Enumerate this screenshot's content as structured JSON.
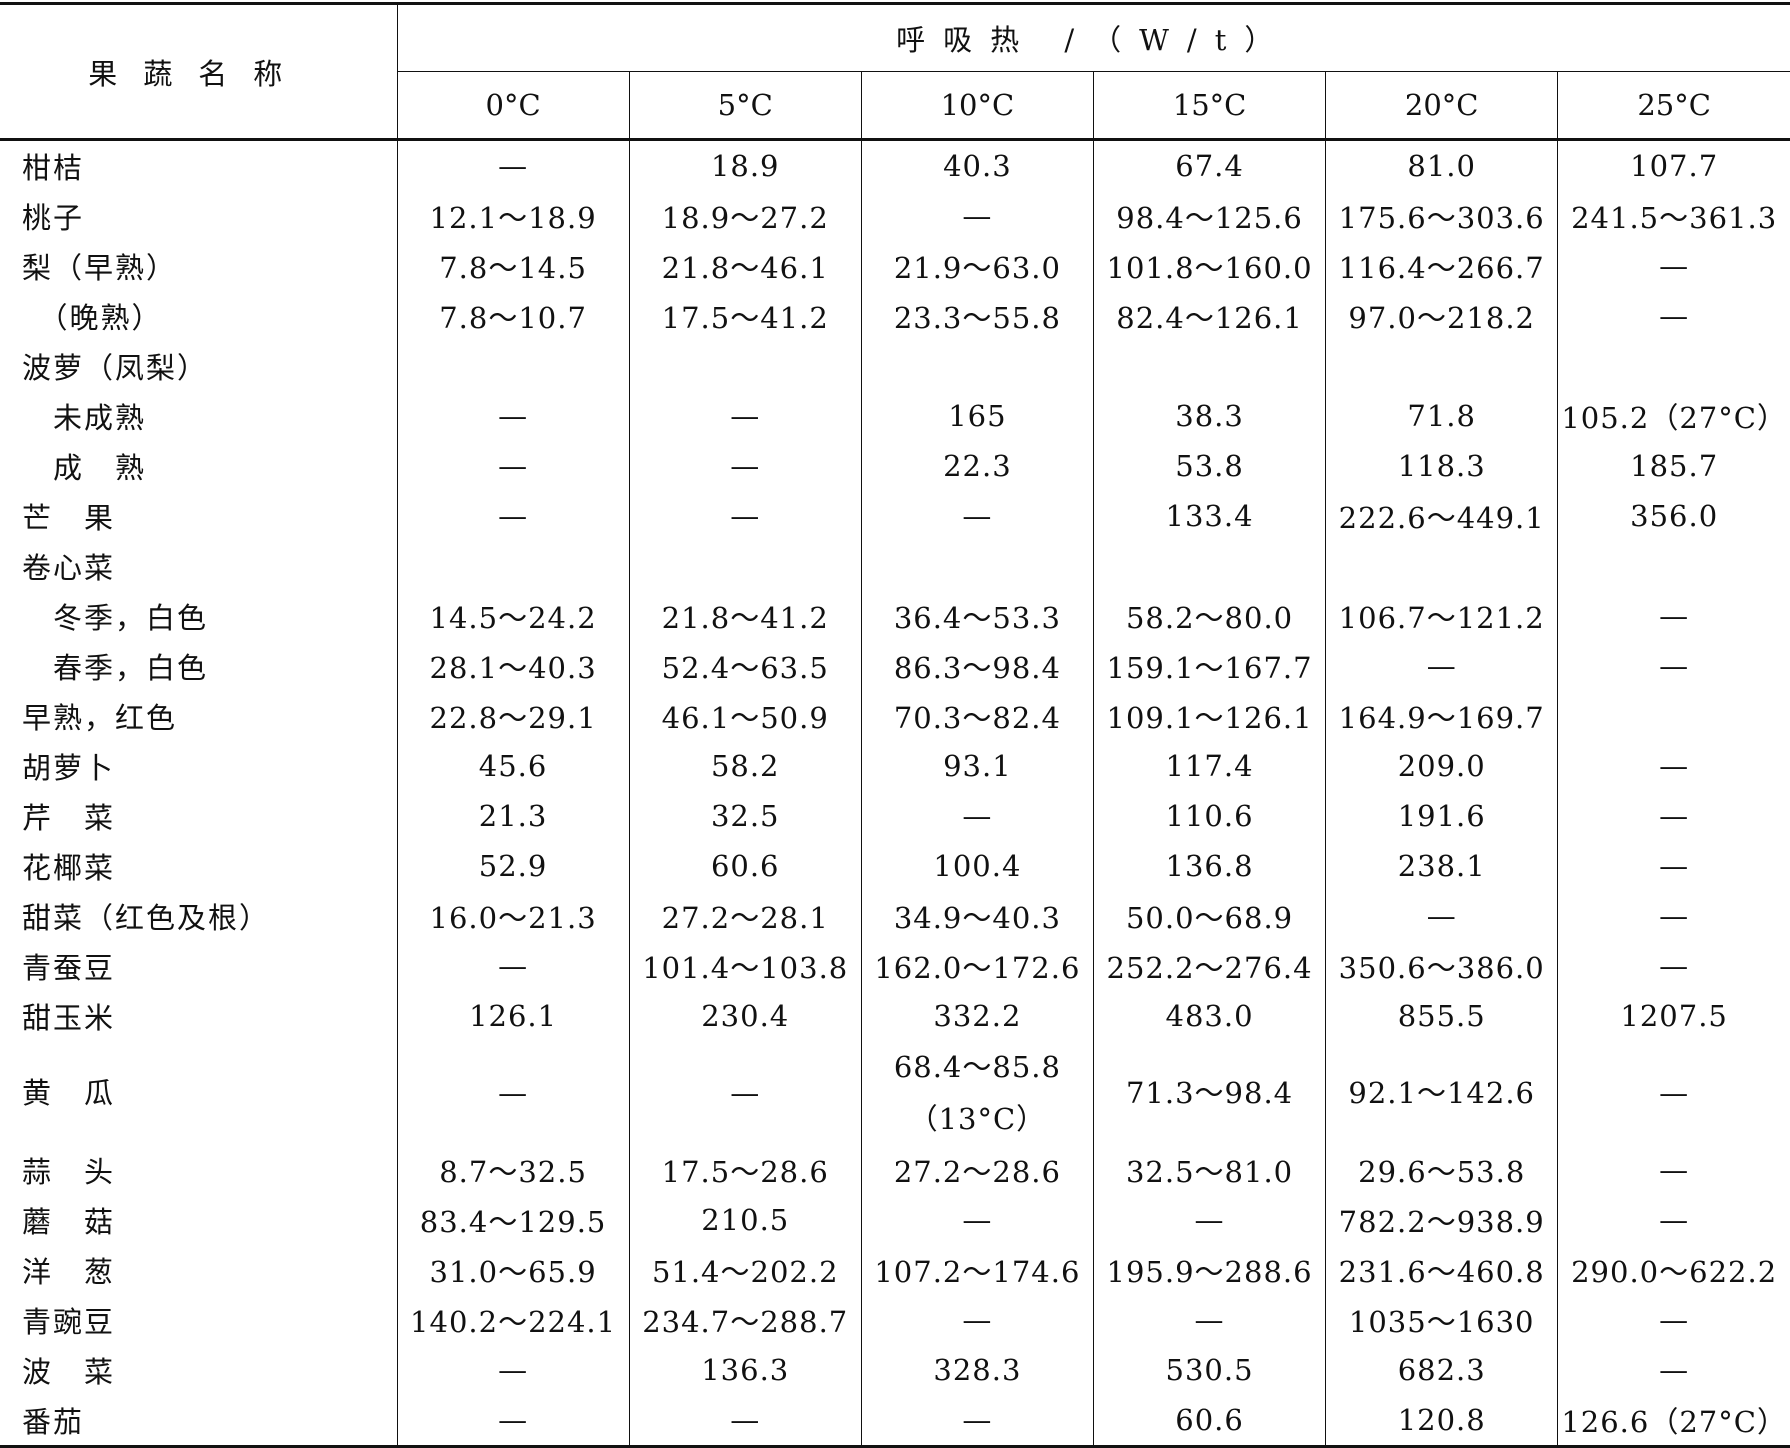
{
  "header": {
    "name_col": "果蔬名称",
    "group_title": "呼吸热 /（W/t）",
    "temperatures": [
      "0°C",
      "5°C",
      "10°C",
      "15°C",
      "20°C",
      "25°C"
    ]
  },
  "rows": [
    {
      "name": "柑桔",
      "values": [
        "—",
        "18.9",
        "40.3",
        "67.4",
        "81.0",
        "107.7"
      ]
    },
    {
      "name": "桃子",
      "values": [
        "12.1～18.9",
        "18.9～27.2",
        "—",
        "98.4～125.6",
        "175.6～303.6",
        "241.5～361.3"
      ]
    },
    {
      "name": "梨（早熟）",
      "values": [
        "7.8～14.5",
        "21.8～46.1",
        "21.9～63.0",
        "101.8～160.0",
        "116.4～266.7",
        "—"
      ]
    },
    {
      "name": "　（晚熟）",
      "values": [
        "7.8～10.7",
        "17.5～41.2",
        "23.3～55.8",
        "82.4～126.1",
        "97.0～218.2",
        "—"
      ]
    },
    {
      "name": "波萝（凤梨）",
      "values": [
        "",
        "",
        "",
        "",
        "",
        ""
      ]
    },
    {
      "name": "　未成熟",
      "values": [
        "—",
        "—",
        "165",
        "38.3",
        "71.8",
        "105.2（27°C）"
      ]
    },
    {
      "name": "　成　熟",
      "values": [
        "—",
        "—",
        "22.3",
        "53.8",
        "118.3",
        "185.7"
      ]
    },
    {
      "name": "芒　果",
      "values": [
        "—",
        "—",
        "—",
        "133.4",
        "222.6～449.1",
        "356.0"
      ]
    },
    {
      "name": "卷心菜",
      "values": [
        "",
        "",
        "",
        "",
        "",
        ""
      ]
    },
    {
      "name": "　冬季，白色",
      "values": [
        "14.5～24.2",
        "21.8～41.2",
        "36.4～53.3",
        "58.2～80.0",
        "106.7～121.2",
        "—"
      ]
    },
    {
      "name": "　春季，白色",
      "values": [
        "28.1～40.3",
        "52.4～63.5",
        "86.3～98.4",
        "159.1～167.7",
        "—",
        "—"
      ]
    },
    {
      "name": "早熟，红色",
      "values": [
        "22.8～29.1",
        "46.1～50.9",
        "70.3～82.4",
        "109.1～126.1",
        "164.9～169.7",
        ""
      ]
    },
    {
      "name": "胡萝卜",
      "values": [
        "45.6",
        "58.2",
        "93.1",
        "117.4",
        "209.0",
        "—"
      ]
    },
    {
      "name": "芹　菜",
      "values": [
        "21.3",
        "32.5",
        "—",
        "110.6",
        "191.6",
        "—"
      ]
    },
    {
      "name": "花椰菜",
      "values": [
        "52.9",
        "60.6",
        "100.4",
        "136.8",
        "238.1",
        "—"
      ]
    },
    {
      "name": "甜菜（红色及根）",
      "values": [
        "16.0～21.3",
        "27.2～28.1",
        "34.9～40.3",
        "50.0～68.9",
        "—",
        "—"
      ]
    },
    {
      "name": "青蚕豆",
      "values": [
        "—",
        "101.4～103.8",
        "162.0～172.6",
        "252.2～276.4",
        "350.6～386.0",
        "—"
      ]
    },
    {
      "name": "甜玉米",
      "values": [
        "126.1",
        "230.4",
        "332.2",
        "483.0",
        "855.5",
        "1207.5"
      ]
    },
    {
      "name": "黄　瓜",
      "values": [
        "—",
        "—",
        "68.4～85.8\n（13°C）",
        "71.3～98.4",
        "92.1～142.6",
        "—"
      ],
      "tall": true
    },
    {
      "name": "蒜　头",
      "values": [
        "8.7～32.5",
        "17.5～28.6",
        "27.2～28.6",
        "32.5～81.0",
        "29.6～53.8",
        "—"
      ]
    },
    {
      "name": "蘑　菇",
      "values": [
        "83.4～129.5",
        "210.5",
        "—",
        "—",
        "782.2～938.9",
        "—"
      ]
    },
    {
      "name": "洋　葱",
      "values": [
        "31.0～65.9",
        "51.4～202.2",
        "107.2～174.6",
        "195.9～288.6",
        "231.6～460.8",
        "290.0～622.2"
      ]
    },
    {
      "name": "青豌豆",
      "values": [
        "140.2～224.1",
        "234.7～288.7",
        "—",
        "—",
        "1035～1630",
        "—"
      ]
    },
    {
      "name": "波　菜",
      "values": [
        "—",
        "136.3",
        "328.3",
        "530.5",
        "682.3",
        "—"
      ]
    },
    {
      "name": "番茄",
      "values": [
        "—",
        "—",
        "—",
        "60.6",
        "120.8",
        "126.6（27°C）"
      ]
    }
  ]
}
